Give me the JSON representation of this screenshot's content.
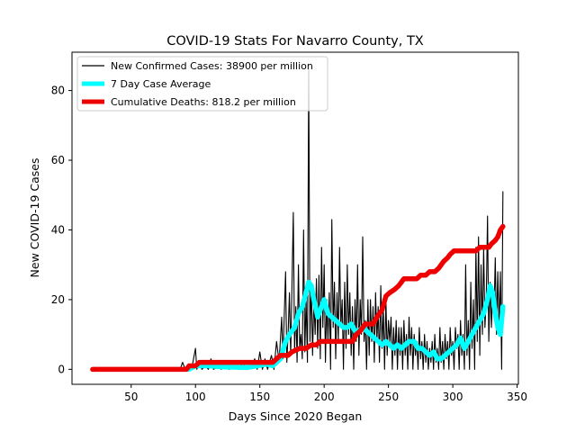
{
  "chart_data": {
    "type": "line",
    "title": "COVID-19 Stats For Navarro County, TX",
    "xlabel": "Days Since 2020 Began",
    "ylabel": "New COVID-19 Cases",
    "xlim": [
      4,
      351
    ],
    "ylim": [
      -4.3,
      91
    ],
    "xticks": [
      50,
      100,
      150,
      200,
      250,
      300,
      350
    ],
    "yticks": [
      0,
      20,
      40,
      60,
      80
    ],
    "grid": false,
    "legend_position": "top-left",
    "series": [
      {
        "name": "New Confirmed Cases: 38900 per million",
        "color": "#000000",
        "style": "thin-line",
        "points": [
          [
            20,
            0
          ],
          [
            60,
            0
          ],
          [
            88,
            0
          ],
          [
            90,
            2
          ],
          [
            92,
            0
          ],
          [
            95,
            1
          ],
          [
            97,
            0
          ],
          [
            100,
            6
          ],
          [
            101,
            0
          ],
          [
            103,
            2
          ],
          [
            105,
            0
          ],
          [
            108,
            1
          ],
          [
            110,
            0
          ],
          [
            112,
            3
          ],
          [
            114,
            0
          ],
          [
            118,
            1
          ],
          [
            120,
            0
          ],
          [
            124,
            2
          ],
          [
            126,
            0
          ],
          [
            130,
            1
          ],
          [
            133,
            0
          ],
          [
            137,
            2
          ],
          [
            140,
            0
          ],
          [
            144,
            1
          ],
          [
            146,
            3
          ],
          [
            148,
            0
          ],
          [
            150,
            5
          ],
          [
            152,
            0
          ],
          [
            154,
            3
          ],
          [
            156,
            0
          ],
          [
            159,
            4
          ],
          [
            161,
            0
          ],
          [
            163,
            8
          ],
          [
            165,
            2
          ],
          [
            167,
            15
          ],
          [
            168,
            3
          ],
          [
            170,
            28
          ],
          [
            171,
            2
          ],
          [
            172,
            10
          ],
          [
            173,
            22
          ],
          [
            174,
            4
          ],
          [
            176,
            45
          ],
          [
            177,
            5
          ],
          [
            178,
            18
          ],
          [
            179,
            2
          ],
          [
            180,
            30
          ],
          [
            181,
            6
          ],
          [
            182,
            10
          ],
          [
            183,
            3
          ],
          [
            184,
            40
          ],
          [
            185,
            5
          ],
          [
            186,
            20
          ],
          [
            187,
            2
          ],
          [
            188,
            86
          ],
          [
            189,
            8
          ],
          [
            190,
            25
          ],
          [
            191,
            4
          ],
          [
            192,
            20
          ],
          [
            193,
            10
          ],
          [
            194,
            26
          ],
          [
            195,
            6
          ],
          [
            196,
            27
          ],
          [
            197,
            3
          ],
          [
            198,
            35
          ],
          [
            199,
            12
          ],
          [
            200,
            30
          ],
          [
            201,
            2
          ],
          [
            202,
            20
          ],
          [
            203,
            8
          ],
          [
            204,
            22
          ],
          [
            205,
            0
          ],
          [
            206,
            43
          ],
          [
            207,
            12
          ],
          [
            208,
            25
          ],
          [
            209,
            3
          ],
          [
            210,
            22
          ],
          [
            211,
            8
          ],
          [
            212,
            35
          ],
          [
            213,
            12
          ],
          [
            214,
            20
          ],
          [
            215,
            0
          ],
          [
            216,
            25
          ],
          [
            217,
            6
          ],
          [
            218,
            30
          ],
          [
            219,
            10
          ],
          [
            220,
            22
          ],
          [
            221,
            4
          ],
          [
            222,
            18
          ],
          [
            223,
            0
          ],
          [
            224,
            20
          ],
          [
            225,
            8
          ],
          [
            226,
            30
          ],
          [
            227,
            4
          ],
          [
            228,
            20
          ],
          [
            229,
            10
          ],
          [
            230,
            38
          ],
          [
            231,
            8
          ],
          [
            232,
            14
          ],
          [
            233,
            0
          ],
          [
            234,
            20
          ],
          [
            235,
            4
          ],
          [
            236,
            20
          ],
          [
            237,
            8
          ],
          [
            238,
            18
          ],
          [
            239,
            2
          ],
          [
            240,
            22
          ],
          [
            241,
            8
          ],
          [
            242,
            18
          ],
          [
            243,
            2
          ],
          [
            244,
            24
          ],
          [
            245,
            6
          ],
          [
            246,
            18
          ],
          [
            247,
            0
          ],
          [
            248,
            20
          ],
          [
            249,
            4
          ],
          [
            250,
            14
          ],
          [
            251,
            8
          ],
          [
            252,
            15
          ],
          [
            253,
            0
          ],
          [
            254,
            12
          ],
          [
            255,
            4
          ],
          [
            256,
            14
          ],
          [
            257,
            0
          ],
          [
            258,
            12
          ],
          [
            259,
            4
          ],
          [
            260,
            12
          ],
          [
            261,
            0
          ],
          [
            262,
            14
          ],
          [
            263,
            4
          ],
          [
            264,
            10
          ],
          [
            265,
            0
          ],
          [
            266,
            15
          ],
          [
            267,
            4
          ],
          [
            268,
            12
          ],
          [
            269,
            0
          ],
          [
            270,
            10
          ],
          [
            271,
            4
          ],
          [
            272,
            8
          ],
          [
            273,
            0
          ],
          [
            274,
            12
          ],
          [
            275,
            3
          ],
          [
            276,
            8
          ],
          [
            277,
            0
          ],
          [
            278,
            10
          ],
          [
            279,
            2
          ],
          [
            280,
            8
          ],
          [
            281,
            0
          ],
          [
            282,
            6
          ],
          [
            283,
            2
          ],
          [
            284,
            8
          ],
          [
            285,
            0
          ],
          [
            286,
            10
          ],
          [
            287,
            2
          ],
          [
            288,
            6
          ],
          [
            289,
            0
          ],
          [
            290,
            12
          ],
          [
            291,
            2
          ],
          [
            292,
            8
          ],
          [
            293,
            0
          ],
          [
            294,
            10
          ],
          [
            295,
            3
          ],
          [
            296,
            8
          ],
          [
            297,
            0
          ],
          [
            298,
            12
          ],
          [
            299,
            4
          ],
          [
            300,
            8
          ],
          [
            301,
            0
          ],
          [
            302,
            12
          ],
          [
            303,
            6
          ],
          [
            304,
            10
          ],
          [
            305,
            0
          ],
          [
            306,
            14
          ],
          [
            307,
            4
          ],
          [
            308,
            10
          ],
          [
            309,
            0
          ],
          [
            310,
            30
          ],
          [
            311,
            4
          ],
          [
            312,
            14
          ],
          [
            313,
            0
          ],
          [
            314,
            25
          ],
          [
            315,
            6
          ],
          [
            316,
            20
          ],
          [
            317,
            0
          ],
          [
            318,
            35
          ],
          [
            319,
            8
          ],
          [
            320,
            38
          ],
          [
            321,
            4
          ],
          [
            322,
            30
          ],
          [
            323,
            10
          ],
          [
            324,
            35
          ],
          [
            325,
            12
          ],
          [
            326,
            20
          ],
          [
            327,
            44
          ],
          [
            328,
            8
          ],
          [
            329,
            25
          ],
          [
            330,
            12
          ],
          [
            331,
            22
          ],
          [
            332,
            15
          ],
          [
            333,
            32
          ],
          [
            334,
            10
          ],
          [
            335,
            28
          ],
          [
            336,
            12
          ],
          [
            337,
            28
          ],
          [
            338,
            0
          ],
          [
            339,
            51
          ]
        ]
      },
      {
        "name": "7 Day Case Average",
        "color": "#00ffff",
        "style": "thick-line",
        "points": [
          [
            95,
            0
          ],
          [
            100,
            1
          ],
          [
            110,
            1
          ],
          [
            120,
            0.7
          ],
          [
            130,
            0.6
          ],
          [
            140,
            0.5
          ],
          [
            148,
            1
          ],
          [
            155,
            1.5
          ],
          [
            160,
            1
          ],
          [
            166,
            3
          ],
          [
            170,
            8
          ],
          [
            173,
            10
          ],
          [
            177,
            12
          ],
          [
            180,
            16
          ],
          [
            183,
            18
          ],
          [
            186,
            22
          ],
          [
            188,
            25
          ],
          [
            190,
            24
          ],
          [
            192,
            20
          ],
          [
            195,
            15
          ],
          [
            198,
            18
          ],
          [
            200,
            20
          ],
          [
            203,
            16
          ],
          [
            206,
            15
          ],
          [
            209,
            14
          ],
          [
            212,
            13
          ],
          [
            215,
            12
          ],
          [
            218,
            12
          ],
          [
            221,
            13
          ],
          [
            224,
            11
          ],
          [
            227,
            11
          ],
          [
            230,
            12
          ],
          [
            233,
            11
          ],
          [
            236,
            10
          ],
          [
            239,
            9
          ],
          [
            242,
            8
          ],
          [
            245,
            7
          ],
          [
            248,
            8
          ],
          [
            251,
            7
          ],
          [
            254,
            6
          ],
          [
            257,
            7
          ],
          [
            260,
            6
          ],
          [
            263,
            7
          ],
          [
            266,
            8
          ],
          [
            270,
            8
          ],
          [
            273,
            6
          ],
          [
            276,
            6
          ],
          [
            279,
            5
          ],
          [
            282,
            4
          ],
          [
            285,
            5
          ],
          [
            288,
            3
          ],
          [
            291,
            3
          ],
          [
            294,
            4
          ],
          [
            297,
            5
          ],
          [
            300,
            6
          ],
          [
            303,
            7
          ],
          [
            306,
            9
          ],
          [
            309,
            6
          ],
          [
            312,
            8
          ],
          [
            315,
            10
          ],
          [
            318,
            12
          ],
          [
            321,
            14
          ],
          [
            324,
            16
          ],
          [
            327,
            20
          ],
          [
            329,
            24
          ],
          [
            331,
            22
          ],
          [
            333,
            16
          ],
          [
            335,
            12
          ],
          [
            337,
            10
          ],
          [
            339,
            18
          ]
        ]
      },
      {
        "name": "Cumulative Deaths: 818.2 per million",
        "color": "#ee0000",
        "style": "thick-line",
        "points": [
          [
            20,
            0
          ],
          [
            93,
            0
          ],
          [
            95,
            1
          ],
          [
            100,
            1
          ],
          [
            103,
            2
          ],
          [
            160,
            2
          ],
          [
            163,
            3
          ],
          [
            166,
            4
          ],
          [
            172,
            4
          ],
          [
            175,
            5
          ],
          [
            181,
            6
          ],
          [
            186,
            6
          ],
          [
            190,
            7
          ],
          [
            194,
            7
          ],
          [
            197,
            8
          ],
          [
            222,
            8
          ],
          [
            225,
            10
          ],
          [
            228,
            11
          ],
          [
            232,
            13
          ],
          [
            238,
            13
          ],
          [
            241,
            15
          ],
          [
            245,
            17
          ],
          [
            248,
            21
          ],
          [
            251,
            22
          ],
          [
            255,
            23
          ],
          [
            258,
            24
          ],
          [
            262,
            26
          ],
          [
            272,
            26
          ],
          [
            275,
            27
          ],
          [
            279,
            27
          ],
          [
            282,
            28
          ],
          [
            286,
            28
          ],
          [
            289,
            29
          ],
          [
            293,
            31
          ],
          [
            296,
            32
          ],
          [
            298,
            33
          ],
          [
            301,
            34
          ],
          [
            318,
            34
          ],
          [
            321,
            35
          ],
          [
            328,
            35
          ],
          [
            330,
            36
          ],
          [
            333,
            37
          ],
          [
            335,
            38
          ],
          [
            337,
            40
          ],
          [
            339,
            41
          ]
        ]
      }
    ]
  }
}
